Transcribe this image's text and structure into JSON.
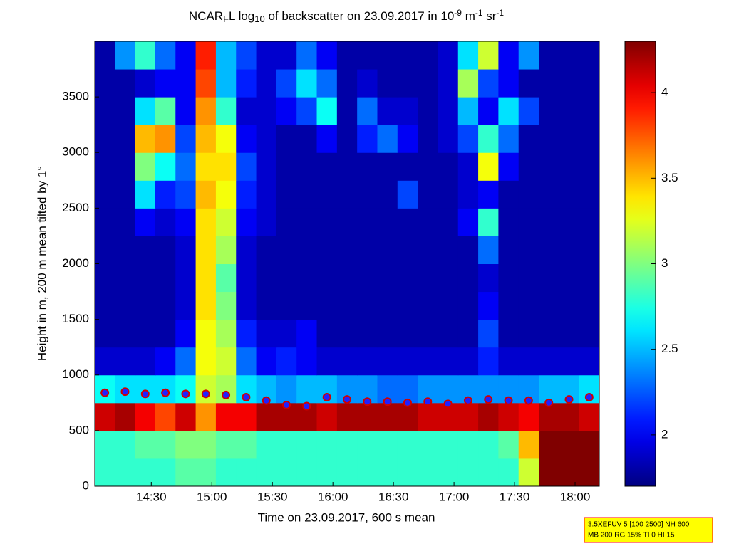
{
  "chart_data": {
    "type": "heatmap",
    "title": [
      "NCAR",
      "F",
      "L log",
      "10",
      " of backscatter on 23.09.2017 in 10",
      "-9",
      " m",
      "-1",
      " sr",
      "-1"
    ],
    "title_styles": [
      "normal",
      "sub",
      "normal",
      "sub",
      "normal",
      "sup",
      "normal",
      "sup",
      "normal",
      "sup"
    ],
    "x_label": "Time on 23.09.2017, 600 s mean",
    "y_label": "Height in m, 200 m mean tilted by 1°",
    "xlim": [
      842,
      1092
    ],
    "xticks": [
      {
        "value": 870,
        "label": "14:30"
      },
      {
        "value": 900,
        "label": "15:00"
      },
      {
        "value": 930,
        "label": "15:30"
      },
      {
        "value": 960,
        "label": "16:00"
      },
      {
        "value": 990,
        "label": "16:30"
      },
      {
        "value": 1020,
        "label": "17:00"
      },
      {
        "value": 1050,
        "label": "17:30"
      },
      {
        "value": 1080,
        "label": "18:00"
      }
    ],
    "ylim": [
      0,
      4000
    ],
    "yticks": [
      0,
      500,
      1000,
      1500,
      2000,
      2500,
      3000,
      3500
    ],
    "x": [
      847,
      857,
      867,
      877,
      887,
      897,
      907,
      917,
      927,
      937,
      947,
      957,
      967,
      977,
      987,
      997,
      1007,
      1017,
      1027,
      1037,
      1047,
      1057,
      1067,
      1077,
      1087
    ],
    "y": [
      125,
      375,
      625,
      875,
      1125,
      1375,
      1625,
      1875,
      2125,
      2375,
      2625,
      2875,
      3125,
      3375,
      3625,
      3875
    ],
    "z": [
      [
        2.8,
        2.8,
        2.8,
        2.8,
        2.9,
        2.9,
        2.8,
        2.8,
        2.8,
        2.8,
        2.8,
        2.8,
        2.8,
        2.8,
        2.8,
        2.8,
        2.8,
        2.8,
        2.8,
        2.8,
        2.8,
        3.2,
        4.3,
        4.3,
        4.3
      ],
      [
        2.8,
        2.8,
        2.9,
        2.9,
        3.0,
        3.0,
        2.9,
        2.9,
        2.8,
        2.8,
        2.8,
        2.8,
        2.8,
        2.8,
        2.8,
        2.8,
        2.8,
        2.8,
        2.8,
        2.8,
        2.9,
        3.5,
        4.3,
        4.3,
        4.3
      ],
      [
        4.1,
        4.2,
        4.0,
        3.8,
        4.1,
        3.6,
        4.0,
        4.0,
        4.2,
        4.2,
        4.2,
        4.1,
        4.2,
        4.2,
        4.2,
        4.2,
        4.1,
        4.1,
        4.1,
        4.2,
        4.1,
        4.0,
        4.2,
        4.2,
        4.1
      ],
      [
        2.7,
        2.6,
        2.6,
        2.6,
        2.7,
        3.2,
        3.1,
        2.6,
        2.5,
        2.4,
        2.5,
        2.5,
        2.4,
        2.4,
        2.3,
        2.3,
        2.4,
        2.4,
        2.4,
        2.4,
        2.4,
        2.4,
        2.5,
        2.5,
        2.6
      ],
      [
        1.9,
        1.9,
        1.9,
        2.0,
        2.3,
        3.3,
        3.2,
        2.3,
        2.0,
        2.1,
        2.0,
        1.9,
        1.9,
        1.9,
        1.9,
        1.9,
        1.9,
        1.9,
        1.9,
        2.1,
        1.9,
        1.9,
        1.9,
        1.9,
        1.9
      ],
      [
        1.8,
        1.8,
        1.8,
        1.8,
        2.0,
        3.3,
        3.1,
        2.1,
        1.9,
        1.9,
        2.0,
        1.8,
        1.8,
        1.8,
        1.8,
        1.8,
        1.8,
        1.8,
        1.8,
        2.2,
        1.8,
        1.8,
        1.8,
        1.8,
        1.8
      ],
      [
        1.8,
        1.8,
        1.8,
        1.8,
        1.9,
        3.4,
        3.0,
        1.9,
        1.8,
        1.8,
        1.8,
        1.8,
        1.8,
        1.8,
        1.8,
        1.8,
        1.8,
        1.8,
        1.8,
        2.0,
        1.8,
        1.8,
        1.8,
        1.8,
        1.8
      ],
      [
        1.8,
        1.8,
        1.8,
        1.8,
        1.9,
        3.4,
        2.9,
        1.9,
        1.8,
        1.8,
        1.8,
        1.8,
        1.8,
        1.8,
        1.8,
        1.8,
        1.8,
        1.8,
        1.8,
        1.9,
        1.8,
        1.8,
        1.8,
        1.8,
        1.8
      ],
      [
        1.8,
        1.8,
        1.8,
        1.8,
        1.9,
        3.4,
        3.1,
        1.9,
        1.8,
        1.8,
        1.8,
        1.8,
        1.8,
        1.8,
        1.8,
        1.8,
        1.8,
        1.8,
        1.8,
        2.3,
        1.8,
        1.8,
        1.8,
        1.8,
        1.8
      ],
      [
        1.8,
        1.8,
        2.0,
        1.9,
        2.0,
        3.4,
        3.2,
        2.0,
        1.9,
        1.8,
        1.8,
        1.8,
        1.8,
        1.8,
        1.8,
        1.8,
        1.8,
        1.8,
        2.0,
        2.8,
        1.8,
        1.8,
        1.8,
        1.8,
        1.8
      ],
      [
        1.8,
        1.8,
        2.6,
        2.1,
        2.2,
        3.5,
        3.3,
        2.1,
        1.9,
        1.8,
        1.8,
        1.8,
        1.8,
        1.8,
        1.8,
        2.2,
        1.8,
        1.8,
        1.9,
        2.0,
        1.8,
        1.8,
        1.8,
        1.8,
        1.8
      ],
      [
        1.8,
        1.8,
        3.0,
        2.7,
        2.3,
        3.4,
        3.4,
        2.2,
        1.9,
        1.8,
        1.8,
        1.8,
        1.8,
        1.8,
        1.8,
        1.8,
        1.8,
        1.8,
        1.9,
        3.3,
        2.0,
        1.8,
        1.8,
        1.8,
        1.8
      ],
      [
        1.8,
        1.8,
        3.5,
        3.6,
        2.2,
        3.5,
        3.3,
        2.0,
        1.9,
        1.8,
        1.8,
        2.0,
        1.8,
        2.1,
        2.3,
        2.0,
        1.8,
        1.9,
        2.2,
        2.8,
        2.3,
        1.8,
        1.8,
        1.8,
        1.8
      ],
      [
        1.8,
        1.8,
        2.6,
        2.9,
        2.0,
        3.6,
        2.8,
        1.9,
        1.9,
        2.0,
        2.2,
        2.7,
        1.8,
        2.3,
        1.9,
        1.9,
        1.8,
        1.9,
        2.5,
        2.0,
        2.6,
        2.2,
        1.8,
        1.8,
        1.8
      ],
      [
        1.8,
        1.8,
        1.9,
        2.0,
        2.0,
        3.8,
        2.5,
        2.1,
        1.9,
        2.2,
        2.6,
        2.3,
        1.8,
        1.9,
        1.8,
        1.8,
        1.8,
        1.9,
        3.1,
        2.2,
        2.0,
        1.8,
        1.8,
        1.8,
        1.8
      ],
      [
        1.8,
        2.4,
        2.8,
        2.3,
        2.0,
        3.9,
        2.5,
        2.2,
        1.9,
        1.9,
        2.3,
        2.0,
        1.8,
        1.8,
        1.8,
        1.8,
        1.8,
        1.9,
        2.6,
        3.2,
        2.0,
        2.4,
        1.8,
        1.8,
        1.8
      ]
    ],
    "series": [
      {
        "values": [
          840,
          850,
          830,
          840,
          830,
          830,
          820,
          800,
          770,
          730,
          720,
          800,
          780,
          760,
          760,
          750,
          760,
          740,
          770,
          780,
          770,
          770,
          750,
          780,
          800
        ],
        "color": "#d00000"
      }
    ],
    "clim": [
      1.7,
      4.3
    ],
    "cticks": [
      2,
      2.5,
      3,
      3.5,
      4
    ],
    "colormap": "jet",
    "annotation": [
      "3.5XEFUV 5 [100 2500] NH 600",
      "MB 200 RG 15% TI 0 HI 15"
    ]
  }
}
